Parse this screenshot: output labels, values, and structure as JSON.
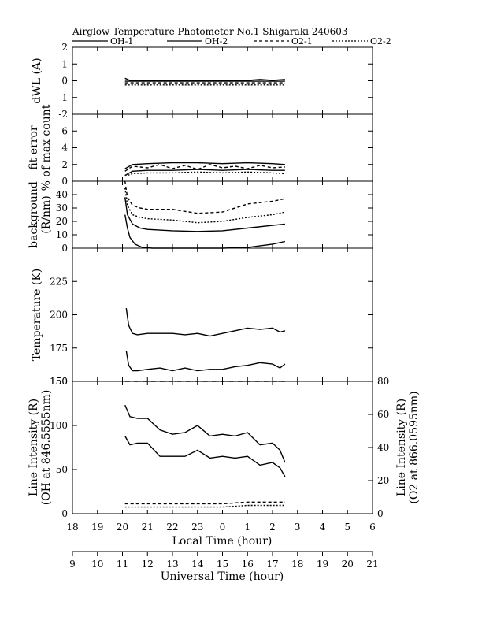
{
  "chart_data": {
    "type": "line",
    "title": "Airglow Temperature Photometer No.1  Shigaraki  240603",
    "legend": {
      "placement": "top",
      "entries": [
        {
          "name": "OH-1",
          "style": "solid"
        },
        {
          "name": "OH-2",
          "style": "solid"
        },
        {
          "name": "O2-1",
          "style": "dashed"
        },
        {
          "name": "O2-2",
          "style": "dotted"
        }
      ]
    },
    "x_local": {
      "label": "Local Time (hour)",
      "range": [
        18,
        30
      ],
      "ticks": [
        18,
        19,
        20,
        21,
        22,
        23,
        24,
        25,
        26,
        27,
        28,
        29,
        30
      ],
      "tick_labels": [
        "18",
        "19",
        "20",
        "21",
        "22",
        "23",
        "0",
        "1",
        "2",
        "3",
        "4",
        "5",
        "6"
      ]
    },
    "x_universal": {
      "label": "Universal Time (hour)",
      "range": [
        9,
        21
      ],
      "ticks": [
        9,
        10,
        11,
        12,
        13,
        14,
        15,
        16,
        17,
        18,
        19,
        20,
        21
      ],
      "tick_labels": [
        "9",
        "10",
        "11",
        "12",
        "13",
        "14",
        "15",
        "16",
        "17",
        "18",
        "19",
        "20",
        "21"
      ]
    },
    "panels": [
      {
        "id": "dwl",
        "ylabel": [
          "dWL (A)"
        ],
        "ylim": [
          -2,
          2
        ],
        "ticks": [
          -2,
          -1,
          0,
          1,
          2
        ],
        "tick_labels": [
          "-2",
          "-1",
          "0",
          "1",
          "2"
        ],
        "series": [
          {
            "name": "OH-1",
            "style": "solid",
            "x": [
              20.1,
              20.3,
              21,
              22,
              23,
              24,
              25,
              25.5,
              26,
              26.5
            ],
            "y": [
              0.15,
              0.02,
              0.02,
              0.03,
              0.02,
              0.02,
              0.02,
              0.08,
              0.03,
              0.08
            ]
          },
          {
            "name": "OH-2",
            "style": "solid",
            "x": [
              20.1,
              20.5,
              22,
              24,
              26,
              26.5
            ],
            "y": [
              -0.03,
              -0.03,
              -0.03,
              -0.03,
              -0.03,
              -0.03
            ]
          },
          {
            "name": "O2-1",
            "style": "dashed",
            "x": [
              20.1,
              20.5,
              22,
              24,
              26,
              26.5
            ],
            "y": [
              -0.12,
              -0.12,
              -0.12,
              -0.12,
              -0.12,
              -0.12
            ]
          },
          {
            "name": "O2-2",
            "style": "dotted",
            "x": [
              20.1,
              20.5,
              22,
              24,
              26,
              26.5
            ],
            "y": [
              -0.25,
              -0.25,
              -0.25,
              -0.25,
              -0.25,
              -0.25
            ]
          }
        ]
      },
      {
        "id": "fit",
        "ylabel": [
          "fit error",
          "% of max count"
        ],
        "ylim": [
          0,
          8
        ],
        "ticks": [
          0,
          2,
          4,
          6
        ],
        "tick_labels": [
          "0",
          "2",
          "4",
          "6"
        ],
        "series": [
          {
            "name": "OH-1",
            "style": "solid",
            "x": [
              20.1,
              20.4,
              21,
              22,
              23,
              24,
              25,
              26,
              26.5
            ],
            "y": [
              1.5,
              2.0,
              2.1,
              2.2,
              2.2,
              2.1,
              2.2,
              2.1,
              2.0
            ]
          },
          {
            "name": "OH-2",
            "style": "solid",
            "x": [
              20.1,
              20.4,
              21,
              22,
              23,
              24,
              25,
              26,
              26.5
            ],
            "y": [
              0.7,
              1.2,
              1.3,
              1.3,
              1.4,
              1.3,
              1.4,
              1.3,
              1.3
            ]
          },
          {
            "name": "O2-1",
            "style": "dashed",
            "x": [
              20.1,
              20.4,
              21,
              21.5,
              22,
              22.5,
              23,
              23.5,
              24,
              24.5,
              25,
              25.5,
              26,
              26.5
            ],
            "y": [
              1.2,
              1.8,
              1.6,
              2.0,
              1.5,
              1.9,
              1.4,
              2.0,
              1.6,
              1.8,
              1.5,
              1.9,
              1.6,
              1.7
            ]
          },
          {
            "name": "O2-2",
            "style": "dotted",
            "x": [
              20.1,
              20.4,
              21,
              22,
              23,
              24,
              25,
              26,
              26.5
            ],
            "y": [
              0.6,
              0.9,
              1.0,
              1.0,
              1.1,
              1.0,
              1.1,
              1.0,
              0.9
            ]
          }
        ]
      },
      {
        "id": "bg",
        "ylabel": [
          "background",
          "(R/nm)"
        ],
        "ylim": [
          0,
          50
        ],
        "ticks": [
          0,
          10,
          20,
          30,
          40
        ],
        "tick_labels": [
          "0",
          "10",
          "20",
          "30",
          "40"
        ],
        "series": [
          {
            "name": "OH-1",
            "style": "solid",
            "x": [
              20.1,
              20.2,
              20.3,
              20.5,
              20.8,
              21.2,
              22,
              23,
              24,
              25,
              26,
              26.5
            ],
            "y": [
              25,
              15,
              8,
              3,
              0.5,
              0,
              0,
              0,
              0,
              0.5,
              3,
              5
            ]
          },
          {
            "name": "OH-2",
            "style": "solid",
            "x": [
              20.1,
              20.2,
              20.4,
              20.7,
              21,
              22,
              23,
              24,
              25,
              26,
              26.5
            ],
            "y": [
              38,
              25,
              18,
              15,
              14,
              13,
              12.5,
              13,
              15,
              17,
              18
            ]
          },
          {
            "name": "O2-1",
            "style": "dashed",
            "x": [
              20.1,
              20.2,
              20.4,
              20.7,
              21,
              22,
              23,
              24,
              25,
              26,
              26.5
            ],
            "y": [
              50,
              38,
              32,
              30,
              29,
              29,
              26,
              27,
              33,
              35,
              37
            ]
          },
          {
            "name": "O2-2",
            "style": "dotted",
            "x": [
              20.1,
              20.2,
              20.4,
              20.7,
              21,
              22,
              23,
              24,
              25,
              26,
              26.5
            ],
            "y": [
              45,
              32,
              25,
              23,
              22,
              21,
              19,
              20,
              23,
              25,
              27
            ]
          }
        ]
      },
      {
        "id": "temp",
        "ylabel": [
          "Temperature (K)"
        ],
        "ylim": [
          150,
          250
        ],
        "ticks": [
          150,
          175,
          200,
          225
        ],
        "tick_labels": [
          "150",
          "175",
          "200",
          "225"
        ],
        "series": [
          {
            "name": "OH-1",
            "style": "solid",
            "x": [
              20.15,
              20.25,
              20.4,
              20.6,
              21,
              21.5,
              22,
              22.5,
              23,
              23.5,
              24,
              24.5,
              25,
              25.5,
              26,
              26.3,
              26.5
            ],
            "y": [
              205,
              192,
              186,
              185,
              186,
              186,
              186,
              185,
              186,
              184,
              186,
              188,
              190,
              189,
              190,
              187,
              188
            ]
          },
          {
            "name": "OH-2",
            "style": "solid",
            "x": [
              20.15,
              20.25,
              20.4,
              20.6,
              21,
              21.5,
              22,
              22.5,
              23,
              23.5,
              24,
              24.5,
              25,
              25.5,
              26,
              26.3,
              26.5
            ],
            "y": [
              173,
              162,
              158,
              158,
              159,
              160,
              158,
              160,
              158,
              159,
              159,
              161,
              162,
              164,
              163,
              160,
              163
            ]
          }
        ]
      },
      {
        "id": "int",
        "ylabel": [
          "Line Intensity (R)",
          "(OH at 846.5555nm)"
        ],
        "ylabel_right": [
          "Line Intensity (R)",
          "(O2 at 866.0595nm)"
        ],
        "ylim": [
          0,
          150
        ],
        "ticks": [
          0,
          50,
          100,
          150
        ],
        "tick_labels": [
          "0",
          "50",
          "100",
          "150"
        ],
        "ylim_right": [
          0,
          80
        ],
        "ticks_right": [
          0,
          20,
          40,
          60,
          80
        ],
        "tick_labels_right": [
          "0",
          "20",
          "40",
          "60",
          "80"
        ],
        "series": [
          {
            "name": "OH-1",
            "style": "solid",
            "x": [
              20.1,
              20.3,
              20.6,
              21,
              21.5,
              22,
              22.5,
              23,
              23.5,
              24,
              24.5,
              25,
              25.5,
              26,
              26.3,
              26.5
            ],
            "y": [
              123,
              110,
              108,
              108,
              95,
              90,
              92,
              100,
              88,
              90,
              88,
              92,
              78,
              80,
              72,
              58
            ]
          },
          {
            "name": "OH-2",
            "style": "solid",
            "x": [
              20.1,
              20.3,
              20.6,
              21,
              21.5,
              22,
              22.5,
              23,
              23.5,
              24,
              24.5,
              25,
              25.5,
              26,
              26.3,
              26.5
            ],
            "y": [
              88,
              78,
              80,
              80,
              65,
              65,
              65,
              72,
              63,
              65,
              63,
              65,
              55,
              58,
              52,
              42
            ]
          },
          {
            "name": "O2-1",
            "style": "dashed",
            "axis": "right",
            "x": [
              20.1,
              21,
              22,
              23,
              24,
              25,
              26,
              26.5
            ],
            "y": [
              6,
              6,
              6,
              6,
              6,
              7,
              7,
              7
            ]
          },
          {
            "name": "O2-2",
            "style": "dotted",
            "axis": "right",
            "x": [
              20.1,
              21,
              22,
              23,
              24,
              25,
              26,
              26.5
            ],
            "y": [
              4,
              4,
              4,
              4,
              4,
              5,
              5,
              5
            ]
          },
          {
            "name": "",
            "style": "dashdot",
            "x": [
              20.1,
              26.5
            ],
            "y": [
              150,
              150
            ]
          }
        ]
      }
    ],
    "grid": false
  }
}
